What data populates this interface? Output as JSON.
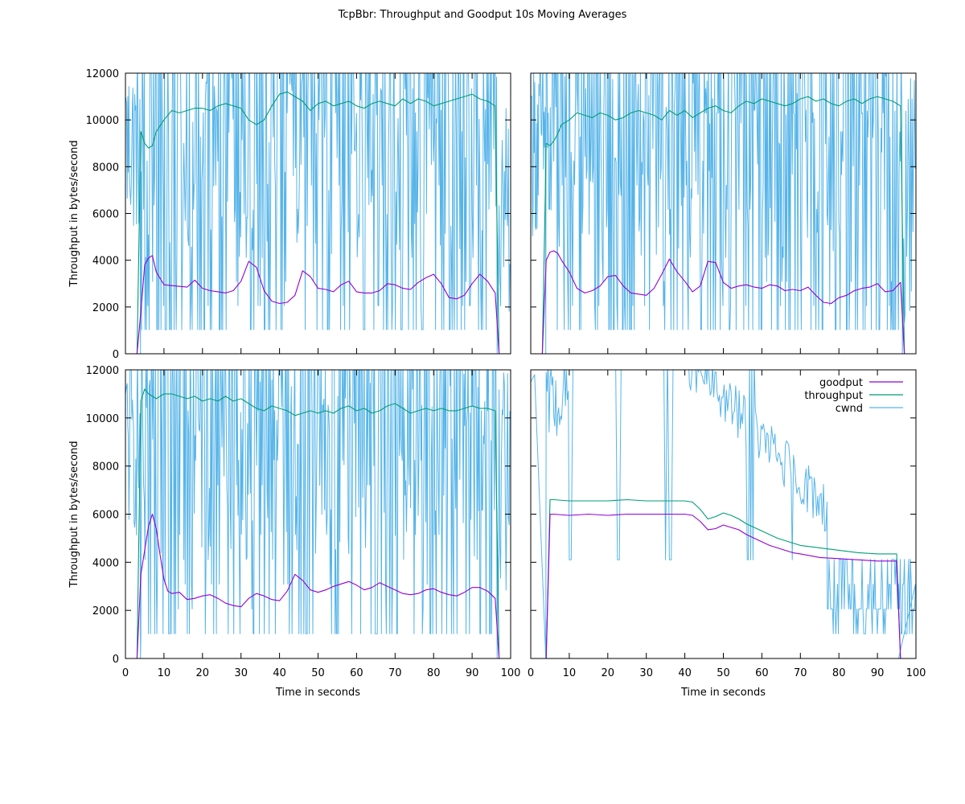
{
  "title": "TcpBbr: Throughput and Goodput 10s Moving Averages",
  "colors": {
    "goodput": "#9400d3",
    "throughput": "#009e73",
    "cwnd": "#56b4e9"
  },
  "chart_data": [
    {
      "type": "line",
      "panel": "top-left",
      "xlabel": "",
      "ylabel": "Throughput in bytes/second",
      "xlim": [
        0,
        100
      ],
      "ylim": [
        0,
        12000
      ],
      "xticks": [],
      "yticks": [
        0,
        2000,
        4000,
        6000,
        8000,
        10000,
        12000
      ],
      "series": [
        {
          "name": "goodput",
          "x": [
            3,
            4,
            5,
            6,
            7,
            8,
            10,
            13,
            16,
            18,
            20,
            22,
            24,
            26,
            28,
            30,
            32,
            34,
            36,
            38,
            40,
            42,
            44,
            46,
            48,
            50,
            52,
            54,
            56,
            58,
            60,
            62,
            64,
            66,
            68,
            70,
            72,
            74,
            76,
            78,
            80,
            82,
            84,
            86,
            88,
            90,
            92,
            94,
            96,
            97
          ],
          "values": [
            0,
            1800,
            3800,
            4100,
            4200,
            3500,
            2950,
            2900,
            2850,
            3150,
            2800,
            2700,
            2650,
            2600,
            2700,
            3100,
            3950,
            3700,
            2700,
            2250,
            2150,
            2200,
            2500,
            3550,
            3300,
            2800,
            2750,
            2650,
            2950,
            3100,
            2650,
            2600,
            2600,
            2700,
            3000,
            2950,
            2800,
            2750,
            3050,
            3250,
            3400,
            3000,
            2400,
            2350,
            2500,
            3000,
            3400,
            3100,
            2600,
            0
          ]
        },
        {
          "name": "throughput",
          "x": [
            3,
            4,
            5,
            6,
            7,
            8,
            10,
            12,
            14,
            16,
            18,
            20,
            22,
            24,
            26,
            28,
            30,
            32,
            34,
            36,
            38,
            40,
            42,
            44,
            46,
            48,
            50,
            52,
            54,
            56,
            58,
            60,
            62,
            64,
            66,
            68,
            70,
            72,
            74,
            76,
            78,
            80,
            82,
            84,
            86,
            88,
            90,
            92,
            94,
            96,
            97
          ],
          "values": [
            0,
            9500,
            9000,
            8800,
            8900,
            9500,
            10000,
            10400,
            10300,
            10400,
            10500,
            10500,
            10400,
            10600,
            10700,
            10600,
            10500,
            10000,
            9800,
            10000,
            10600,
            11100,
            11200,
            11000,
            10800,
            10400,
            10700,
            10800,
            10600,
            10700,
            10800,
            10600,
            10500,
            10700,
            10800,
            10700,
            10600,
            10900,
            10700,
            10900,
            10800,
            10600,
            10700,
            10800,
            10900,
            11000,
            11100,
            10900,
            10800,
            10600,
            0
          ]
        },
        {
          "name": "cwnd",
          "sampled": true,
          "x": [],
          "values": []
        }
      ]
    },
    {
      "type": "line",
      "panel": "top-right",
      "xlabel": "",
      "ylabel": "",
      "xlim": [
        0,
        100
      ],
      "ylim": [
        0,
        12000
      ],
      "xticks": [],
      "yticks": [],
      "series": [
        {
          "name": "goodput",
          "x": [
            3,
            4,
            5,
            6,
            7,
            8,
            10,
            12,
            14,
            16,
            18,
            20,
            22,
            24,
            26,
            28,
            30,
            32,
            34,
            36,
            38,
            40,
            42,
            44,
            46,
            48,
            50,
            52,
            54,
            56,
            58,
            60,
            62,
            64,
            66,
            68,
            70,
            72,
            74,
            76,
            78,
            80,
            82,
            84,
            86,
            88,
            90,
            92,
            94,
            96,
            97
          ],
          "values": [
            0,
            4000,
            4350,
            4400,
            4300,
            4000,
            3500,
            2800,
            2600,
            2700,
            2900,
            3300,
            3350,
            2900,
            2600,
            2550,
            2500,
            2800,
            3400,
            4050,
            3500,
            3100,
            2650,
            2900,
            3950,
            3900,
            3050,
            2800,
            2900,
            2950,
            2850,
            2800,
            2950,
            2900,
            2700,
            2750,
            2700,
            2850,
            2500,
            2200,
            2150,
            2400,
            2500,
            2700,
            2800,
            2850,
            3000,
            2650,
            2700,
            3050,
            0
          ]
        },
        {
          "name": "throughput",
          "x": [
            3,
            4,
            5,
            6,
            7,
            8,
            10,
            12,
            14,
            16,
            18,
            20,
            22,
            24,
            26,
            28,
            30,
            32,
            34,
            36,
            38,
            40,
            42,
            44,
            46,
            48,
            50,
            52,
            54,
            56,
            58,
            60,
            62,
            64,
            66,
            68,
            70,
            72,
            74,
            76,
            78,
            80,
            82,
            84,
            86,
            88,
            90,
            92,
            94,
            96,
            97
          ],
          "values": [
            0,
            9000,
            8900,
            9100,
            9400,
            9800,
            10000,
            10300,
            10200,
            10100,
            10300,
            10200,
            10000,
            10100,
            10300,
            10400,
            10300,
            10200,
            10000,
            10400,
            10200,
            10400,
            10100,
            10300,
            10500,
            10600,
            10400,
            10300,
            10600,
            10800,
            10700,
            10900,
            10800,
            10700,
            10600,
            10700,
            10900,
            11000,
            10800,
            10900,
            10700,
            10600,
            10800,
            10900,
            10700,
            10900,
            11000,
            10900,
            10800,
            10600,
            0
          ]
        },
        {
          "name": "cwnd",
          "sampled": true,
          "x": [],
          "values": []
        }
      ]
    },
    {
      "type": "line",
      "panel": "bottom-left",
      "xlabel": "Time in seconds",
      "ylabel": "Throughput in bytes/second",
      "xlim": [
        0,
        100
      ],
      "ylim": [
        0,
        12000
      ],
      "xticks": [
        0,
        10,
        20,
        30,
        40,
        50,
        60,
        70,
        80,
        90,
        100
      ],
      "yticks": [
        0,
        2000,
        4000,
        6000,
        8000,
        10000,
        12000
      ],
      "series": [
        {
          "name": "goodput",
          "x": [
            3,
            4,
            5,
            6,
            7,
            8,
            9,
            10,
            11,
            12,
            14,
            16,
            18,
            20,
            22,
            24,
            26,
            28,
            30,
            32,
            34,
            36,
            38,
            40,
            42,
            44,
            46,
            48,
            50,
            52,
            54,
            56,
            58,
            60,
            62,
            64,
            66,
            68,
            70,
            72,
            74,
            76,
            78,
            80,
            82,
            84,
            86,
            88,
            90,
            92,
            94,
            96,
            97
          ],
          "values": [
            0,
            3500,
            4500,
            5500,
            6000,
            5400,
            4300,
            3300,
            2800,
            2700,
            2750,
            2450,
            2500,
            2600,
            2650,
            2500,
            2300,
            2200,
            2150,
            2500,
            2700,
            2600,
            2450,
            2400,
            2800,
            3500,
            3250,
            2850,
            2750,
            2850,
            3000,
            3100,
            3200,
            3050,
            2850,
            2950,
            3150,
            3000,
            2850,
            2700,
            2650,
            2700,
            2850,
            2900,
            2750,
            2650,
            2600,
            2750,
            2950,
            2950,
            2800,
            2500,
            0
          ]
        },
        {
          "name": "throughput",
          "x": [
            3,
            4,
            5,
            6,
            7,
            8,
            10,
            12,
            14,
            16,
            18,
            20,
            22,
            24,
            26,
            28,
            30,
            32,
            34,
            36,
            38,
            40,
            42,
            44,
            46,
            48,
            50,
            52,
            54,
            56,
            58,
            60,
            62,
            64,
            66,
            68,
            70,
            72,
            74,
            76,
            78,
            80,
            82,
            84,
            86,
            88,
            90,
            92,
            94,
            96,
            97
          ],
          "values": [
            0,
            10700,
            11200,
            11000,
            10900,
            10800,
            11000,
            11000,
            10900,
            10800,
            10900,
            10700,
            10800,
            10700,
            10900,
            10700,
            10800,
            10600,
            10400,
            10300,
            10500,
            10400,
            10300,
            10100,
            10200,
            10300,
            10200,
            10300,
            10200,
            10400,
            10500,
            10300,
            10400,
            10200,
            10300,
            10500,
            10600,
            10400,
            10200,
            10300,
            10400,
            10300,
            10400,
            10300,
            10300,
            10400,
            10500,
            10400,
            10400,
            10300,
            0
          ]
        },
        {
          "name": "cwnd",
          "sampled": true,
          "x": [],
          "values": []
        }
      ]
    },
    {
      "type": "line",
      "panel": "bottom-right",
      "xlabel": "Time in seconds",
      "ylabel": "",
      "xlim": [
        0,
        100
      ],
      "ylim": [
        0,
        12000
      ],
      "xticks": [
        0,
        10,
        20,
        30,
        40,
        50,
        60,
        70,
        80,
        90,
        100
      ],
      "yticks": [],
      "legend": {
        "placement": "top-right",
        "entries": [
          "goodput",
          "throughput",
          "cwnd"
        ]
      },
      "series": [
        {
          "name": "goodput",
          "x": [
            4,
            5,
            6,
            10,
            15,
            20,
            25,
            30,
            35,
            40,
            42,
            44,
            46,
            48,
            50,
            52,
            54,
            56,
            58,
            60,
            62,
            64,
            66,
            68,
            70,
            75,
            80,
            85,
            90,
            95,
            96
          ],
          "values": [
            0,
            6000,
            6000,
            5950,
            6000,
            5950,
            6000,
            6000,
            6000,
            6000,
            5950,
            5700,
            5350,
            5400,
            5550,
            5450,
            5350,
            5150,
            5000,
            4850,
            4700,
            4600,
            4500,
            4400,
            4350,
            4200,
            4150,
            4100,
            4050,
            4050,
            0
          ]
        },
        {
          "name": "throughput",
          "x": [
            4,
            5,
            6,
            10,
            15,
            20,
            25,
            30,
            35,
            40,
            42,
            44,
            46,
            48,
            50,
            52,
            54,
            56,
            58,
            60,
            62,
            64,
            66,
            68,
            70,
            75,
            80,
            85,
            90,
            95,
            96
          ],
          "values": [
            0,
            6600,
            6600,
            6550,
            6550,
            6550,
            6600,
            6550,
            6550,
            6550,
            6500,
            6200,
            5800,
            5900,
            6050,
            5950,
            5800,
            5600,
            5450,
            5300,
            5150,
            5000,
            4900,
            4800,
            4700,
            4600,
            4500,
            4400,
            4350,
            4350,
            0
          ]
        },
        {
          "name": "cwnd",
          "sampled": true,
          "x": [],
          "values": []
        }
      ]
    }
  ]
}
